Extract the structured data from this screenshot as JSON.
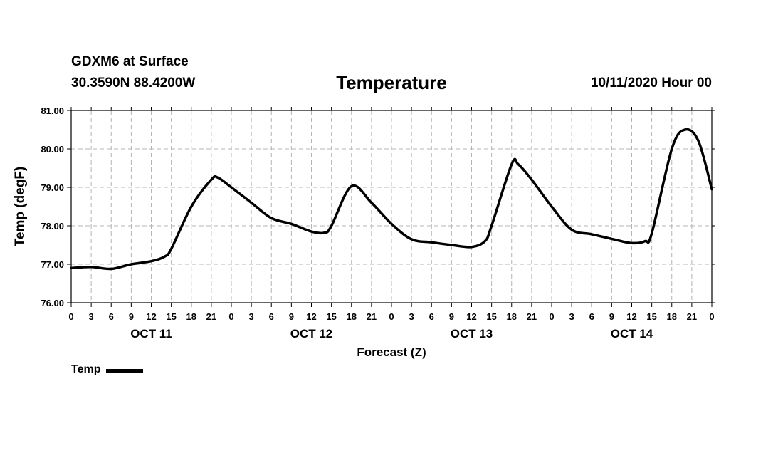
{
  "header": {
    "station": "GDXM6 at Surface",
    "latlon": "30.3590N 88.4200W",
    "title": "Temperature",
    "datetime": "10/11/2020 Hour 00"
  },
  "chart_data": {
    "type": "line",
    "title": "Temperature",
    "xlabel": "Forecast (Z)",
    "ylabel": "Temp (degF)",
    "ylim": [
      76,
      81
    ],
    "yticks": [
      "76.00",
      "77.00",
      "78.00",
      "79.00",
      "80.00",
      "81.00"
    ],
    "x_hours_range": [
      0,
      96
    ],
    "xticks": [
      "0",
      "3",
      "6",
      "9",
      "12",
      "15",
      "18",
      "21",
      "0",
      "3",
      "6",
      "9",
      "12",
      "15",
      "18",
      "21",
      "0",
      "3",
      "6",
      "9",
      "12",
      "15",
      "18",
      "21",
      "0",
      "3",
      "6",
      "9",
      "12",
      "15",
      "18",
      "21",
      "0"
    ],
    "day_labels": [
      {
        "label": "OCT 11",
        "hour": 12
      },
      {
        "label": "OCT 12",
        "hour": 36
      },
      {
        "label": "OCT 13",
        "hour": 60
      },
      {
        "label": "OCT 14",
        "hour": 84
      }
    ],
    "grid": true,
    "series": [
      {
        "name": "Temp",
        "color": "#000000",
        "x_hours": [
          0,
          3,
          6,
          9,
          12,
          14,
          15,
          18,
          21,
          22,
          24,
          27,
          30,
          33,
          36,
          38,
          39,
          42,
          45,
          48,
          51,
          54,
          57,
          60,
          62,
          63,
          66,
          67,
          69,
          72,
          75,
          78,
          81,
          84,
          86,
          87,
          90,
          92,
          94,
          96
        ],
        "values": [
          76.9,
          76.93,
          76.88,
          77.0,
          77.08,
          77.2,
          77.4,
          78.5,
          79.2,
          79.25,
          79.0,
          78.6,
          78.2,
          78.05,
          77.85,
          77.82,
          78.0,
          79.03,
          78.6,
          78.05,
          77.65,
          77.57,
          77.5,
          77.45,
          77.6,
          78.0,
          79.6,
          79.6,
          79.2,
          78.5,
          77.9,
          77.78,
          77.66,
          77.55,
          77.6,
          77.8,
          80.0,
          80.5,
          80.2,
          78.95
        ]
      }
    ],
    "legend": [
      {
        "label": "Temp",
        "color": "#000000"
      }
    ]
  }
}
